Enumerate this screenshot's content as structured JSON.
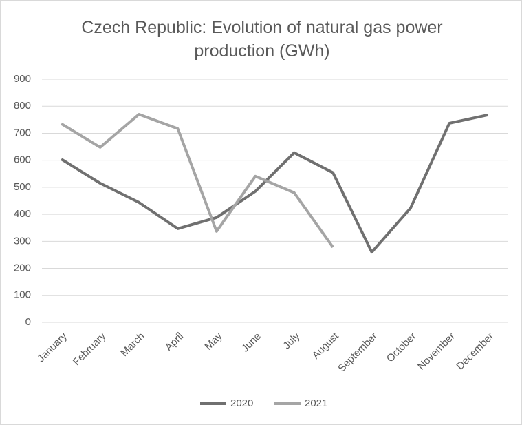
{
  "chart_data": {
    "type": "line",
    "title": "Czech Republic: Evolution of natural gas power production (GWh)",
    "categories": [
      "January",
      "February",
      "March",
      "April",
      "May",
      "June",
      "July",
      "August",
      "September",
      "October",
      "November",
      "December"
    ],
    "series": [
      {
        "name": "2020",
        "color": "#707070",
        "values": [
          604,
          515,
          444,
          347,
          388,
          485,
          628,
          554,
          260,
          423,
          737,
          768
        ]
      },
      {
        "name": "2021",
        "color": "#a5a5a5",
        "values": [
          735,
          648,
          770,
          717,
          337,
          541,
          480,
          278,
          null,
          null,
          null,
          null
        ]
      }
    ],
    "ylim": [
      0,
      900
    ],
    "yticks": [
      0,
      100,
      200,
      300,
      400,
      500,
      600,
      700,
      800,
      900
    ],
    "grid": true,
    "legend": "bottom"
  }
}
